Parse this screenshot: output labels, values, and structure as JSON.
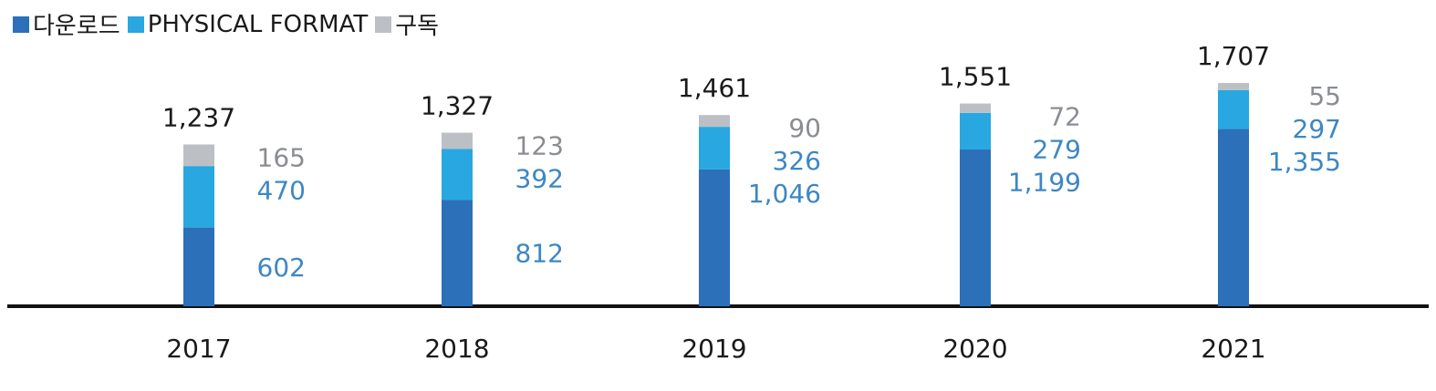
{
  "chart_data": {
    "type": "bar",
    "stacked": true,
    "categories": [
      "2017",
      "2018",
      "2019",
      "2020",
      "2021"
    ],
    "series": [
      {
        "name": "다운로드",
        "color": "#2b70b9",
        "label_color": "#3d87c4",
        "values": [
          602,
          812,
          1046,
          1199,
          1355
        ]
      },
      {
        "name": "PHYSICAL FORMAT",
        "color": "#29a7e1",
        "label_color": "#3d87c4",
        "values": [
          470,
          392,
          326,
          279,
          297
        ]
      },
      {
        "name": "구독",
        "color": "#bcc0c5",
        "label_color": "#8a8d91",
        "values": [
          165,
          123,
          90,
          72,
          55
        ]
      }
    ],
    "totals": [
      "1,237",
      "1,327",
      "1,461",
      "1,551",
      "1,707"
    ],
    "value_labels": {
      "다운로드": [
        "602",
        "812",
        "1,046",
        "1,199",
        "1,355"
      ],
      "PHYSICAL FORMAT": [
        "470",
        "392",
        "326",
        "279",
        "297"
      ],
      "구독": [
        "165",
        "123",
        "90",
        "72",
        "55"
      ]
    },
    "legend_position": "top-left",
    "grid": false
  }
}
